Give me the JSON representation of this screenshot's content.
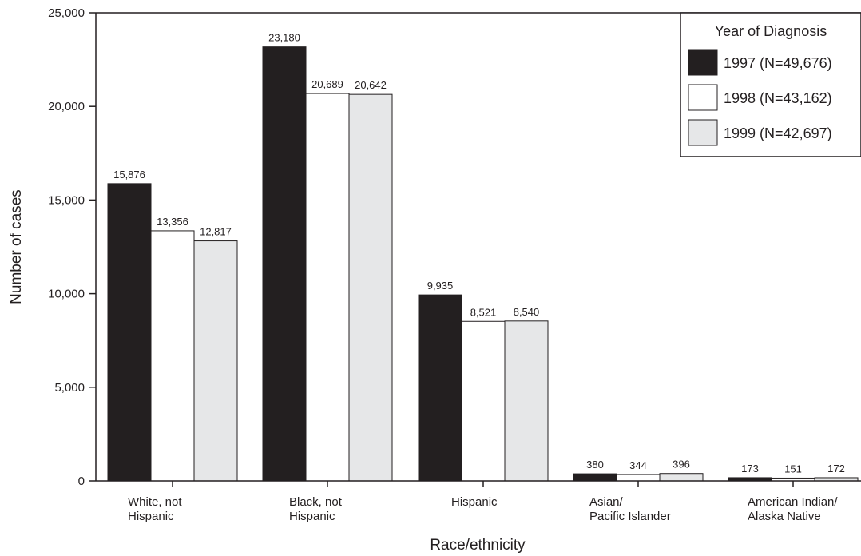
{
  "chart_data": {
    "type": "bar",
    "title": "",
    "xlabel": "Race/ethnicity",
    "ylabel": "Number of cases",
    "ylim": [
      0,
      25000
    ],
    "yticks": [
      "0",
      "5,000",
      "10,000",
      "15,000",
      "20,000",
      "25,000"
    ],
    "ytick_values": [
      0,
      5000,
      10000,
      15000,
      20000,
      25000
    ],
    "categories": [
      [
        "White, not",
        "Hispanic"
      ],
      [
        "Black, not",
        "Hispanic"
      ],
      [
        "Hispanic"
      ],
      [
        "Asian/",
        "Pacific Islander"
      ],
      [
        "American Indian/",
        "Alaska Native"
      ]
    ],
    "legend": {
      "title": "Year of Diagnosis",
      "placement": "top-right"
    },
    "series": [
      {
        "name": "1997 (N=49,676)",
        "color": "#231f20",
        "values": [
          15876,
          23180,
          9935,
          380,
          173
        ],
        "labels": [
          "15,876",
          "23,180",
          "9,935",
          "380",
          "173"
        ]
      },
      {
        "name": "1998 (N=43,162)",
        "color": "#ffffff",
        "values": [
          13356,
          20689,
          8521,
          344,
          151
        ],
        "labels": [
          "13,356",
          "20,689",
          "8,521",
          "344",
          "151"
        ]
      },
      {
        "name": "1999 (N=42,697)",
        "color": "#e6e7e8",
        "values": [
          12817,
          20642,
          8540,
          396,
          172
        ],
        "labels": [
          "12,817",
          "20,642",
          "8,540",
          "396",
          "172"
        ]
      }
    ],
    "grid": false
  }
}
